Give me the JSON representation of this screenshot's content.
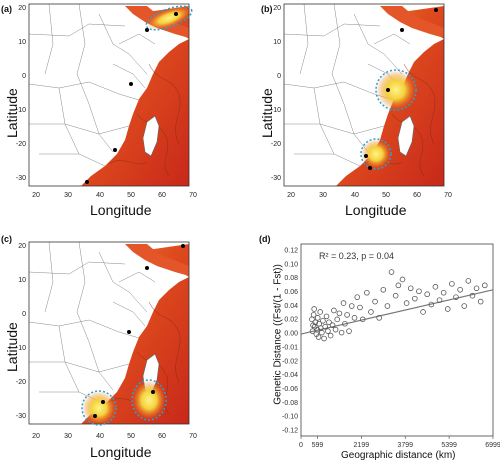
{
  "panels": {
    "a": {
      "label": "(a)"
    },
    "b": {
      "label": "(b)"
    },
    "c": {
      "label": "(c)"
    },
    "d": {
      "label": "(d)"
    }
  },
  "map_axes": {
    "xlabel": "Longitude",
    "ylabel": "Latitude",
    "x_ticks": [
      "20",
      "30",
      "40",
      "50",
      "60",
      "70"
    ],
    "y_ticks": [
      "20",
      "10",
      "0",
      "-10",
      "-20",
      "-30"
    ]
  },
  "colors": {
    "ocean_red": "#d2341c",
    "ocean_orange": "#e8641e",
    "ocean_yellow": "#f7e24a",
    "highlight_ring": "#2aa0d8",
    "regression_line": "#777777",
    "point_stroke": "#555555"
  },
  "chart_data": {
    "type": "scatter",
    "xlabel": "Geographic distance (km)",
    "ylabel": "Genetic Distance ((Fst/(1 - Fst))",
    "annotation": "R² = 0.23, p = 0.04",
    "x_ticks": [
      "0",
      "599",
      "2199",
      "3799",
      "5399",
      "6999"
    ],
    "y_ticks": [
      "0.12",
      "0.10",
      "0.08",
      "0.06",
      "0.04",
      "0.02",
      "0.00",
      "-0.01",
      "-0.02",
      "-0.04",
      "-0.06",
      "-0.08",
      "-0.10",
      "-0.12"
    ],
    "ylim": [
      -0.13,
      0.13
    ],
    "xlim": [
      0,
      6999
    ],
    "grid": false,
    "trend": {
      "x": [
        0,
        6999
      ],
      "y": [
        0.008,
        0.068
      ]
    },
    "points": [
      [
        399,
        0.028
      ],
      [
        420,
        0.012
      ],
      [
        440,
        0.02
      ],
      [
        460,
        0.034
      ],
      [
        480,
        0.042
      ],
      [
        500,
        0.018
      ],
      [
        520,
        0.024
      ],
      [
        560,
        0.008
      ],
      [
        590,
        0.014
      ],
      [
        610,
        0.03
      ],
      [
        640,
        0.004
      ],
      [
        660,
        0.022
      ],
      [
        700,
        0.038
      ],
      [
        720,
        0.016
      ],
      [
        760,
        0.01
      ],
      [
        800,
        0.026
      ],
      [
        840,
        0.002
      ],
      [
        880,
        0.018
      ],
      [
        930,
        0.032
      ],
      [
        980,
        0.012
      ],
      [
        1020,
        0.024
      ],
      [
        1080,
        0.006
      ],
      [
        1150,
        0.02
      ],
      [
        1200,
        0.04
      ],
      [
        1260,
        0.014
      ],
      [
        1320,
        0.028
      ],
      [
        1400,
        0.036
      ],
      [
        1480,
        0.01
      ],
      [
        1550,
        0.05
      ],
      [
        1600,
        0.022
      ],
      [
        1680,
        0.034
      ],
      [
        1750,
        0.012
      ],
      [
        1850,
        0.046
      ],
      [
        1950,
        0.03
      ],
      [
        2050,
        0.058
      ],
      [
        2150,
        0.044
      ],
      [
        2250,
        0.028
      ],
      [
        2400,
        0.064
      ],
      [
        2550,
        0.038
      ],
      [
        2700,
        0.052
      ],
      [
        2850,
        0.03
      ],
      [
        3000,
        0.068
      ],
      [
        3150,
        0.046
      ],
      [
        3300,
        0.092
      ],
      [
        3450,
        0.06
      ],
      [
        3550,
        0.074
      ],
      [
        3700,
        0.082
      ],
      [
        3850,
        0.05
      ],
      [
        4000,
        0.07
      ],
      [
        4150,
        0.056
      ],
      [
        4300,
        0.066
      ],
      [
        4450,
        0.038
      ],
      [
        4600,
        0.062
      ],
      [
        4750,
        0.048
      ],
      [
        4900,
        0.072
      ],
      [
        5050,
        0.054
      ],
      [
        5200,
        0.064
      ],
      [
        5350,
        0.042
      ],
      [
        5500,
        0.076
      ],
      [
        5650,
        0.058
      ],
      [
        5800,
        0.068
      ],
      [
        5950,
        0.046
      ],
      [
        6100,
        0.08
      ],
      [
        6250,
        0.06
      ],
      [
        6400,
        0.07
      ],
      [
        6550,
        0.052
      ],
      [
        6700,
        0.074
      ]
    ]
  }
}
